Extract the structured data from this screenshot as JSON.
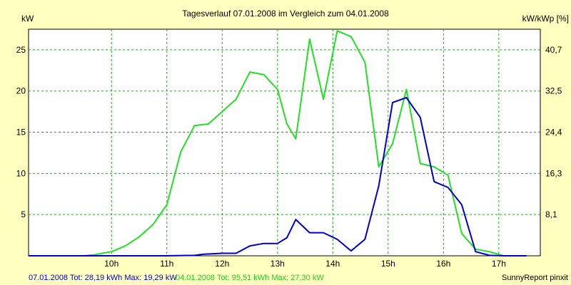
{
  "chart_data": {
    "type": "line",
    "title": "Tagesverlauf 07.01.2008 im Vergleich zum 04.01.2008",
    "ylabel_left": "kW",
    "ylabel_right": "kW/kWp [%]",
    "x_ticks": [
      "10h",
      "11h",
      "12h",
      "13h",
      "14h",
      "15h",
      "16h",
      "17h"
    ],
    "x_tick_values": [
      10,
      11,
      12,
      13,
      14,
      15,
      16,
      17
    ],
    "xlim": [
      8.5,
      17.75
    ],
    "y_ticks": [
      5,
      10,
      15,
      20,
      25
    ],
    "ylim": [
      0,
      27.5
    ],
    "y_right_ticks": [
      "8,1",
      "16,3",
      "24,4",
      "32,5",
      "40,7"
    ],
    "grid": true,
    "grid_color": "#00c000",
    "series": [
      {
        "name": "07.01.2008",
        "color": "#0000cc",
        "x": [
          8.5,
          9.0,
          9.5,
          10.0,
          10.5,
          11.0,
          11.5,
          11.67,
          12.0,
          12.25,
          12.5,
          12.75,
          13.0,
          13.17,
          13.33,
          13.58,
          13.83,
          14.08,
          14.33,
          14.58,
          14.83,
          15.08,
          15.33,
          15.58,
          15.83,
          16.08,
          16.33,
          16.58,
          16.83,
          17.08,
          17.5
        ],
        "values": [
          0,
          0,
          0,
          0,
          0,
          0,
          0.05,
          0.2,
          0.3,
          0.3,
          1.2,
          1.5,
          1.5,
          2.2,
          4.4,
          2.8,
          2.8,
          2.0,
          0.6,
          2.0,
          8.5,
          18.6,
          19.2,
          16.8,
          9.0,
          8.3,
          6.2,
          0.5,
          0.05,
          0,
          0
        ]
      },
      {
        "name": "04.01.2008",
        "color": "#22e022",
        "x": [
          8.5,
          9.5,
          9.67,
          9.83,
          10.0,
          10.25,
          10.5,
          10.75,
          11.0,
          11.25,
          11.5,
          11.75,
          12.0,
          12.25,
          12.5,
          12.75,
          13.0,
          13.17,
          13.33,
          13.58,
          13.83,
          14.08,
          14.33,
          14.58,
          14.83,
          15.08,
          15.33,
          15.58,
          15.83,
          16.08,
          16.33,
          16.58,
          16.83,
          17.08,
          17.5
        ],
        "values": [
          0,
          0,
          0.1,
          0.3,
          0.5,
          1.2,
          2.3,
          3.8,
          6.2,
          12.6,
          15.8,
          16.0,
          17.5,
          19.0,
          22.3,
          22.0,
          20.2,
          16.0,
          14.2,
          26.3,
          19.0,
          27.3,
          26.6,
          23.5,
          10.8,
          13.6,
          20.2,
          11.2,
          10.8,
          9.8,
          2.7,
          0.8,
          0.5,
          0,
          0
        ]
      }
    ]
  },
  "footer": {
    "left_blue": "07.01.2008 Tot: 28,19 kWh Max: 19,29 kW",
    "left_green": "04.01.2008 Tot: 95,51 kWh Max: 27,30 kW",
    "right": "SunnyReport pinxit"
  }
}
